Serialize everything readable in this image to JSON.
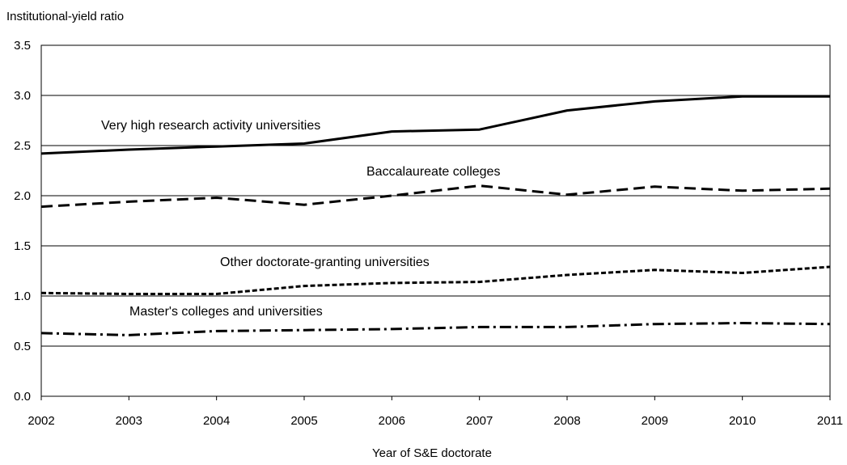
{
  "chart_data": {
    "type": "line",
    "title": "",
    "ylabel": "Institutional-yield ratio",
    "xlabel": "Year of S&E doctorate",
    "x": [
      "2002",
      "2003",
      "2004",
      "2005",
      "2006",
      "2007",
      "2008",
      "2009",
      "2010",
      "2011"
    ],
    "ylim": [
      0,
      3.5
    ],
    "yticks": [
      "0.0",
      "0.5",
      "1.0",
      "1.5",
      "2.0",
      "2.5",
      "3.0",
      "3.5"
    ],
    "grid": "horizontal",
    "legend": "inline labels",
    "series": [
      {
        "name": "Very high research activity universities",
        "style": "solid",
        "color": "#000000",
        "values": [
          2.42,
          2.46,
          2.49,
          2.52,
          2.64,
          2.66,
          2.85,
          2.94,
          2.99,
          2.99
        ]
      },
      {
        "name": "Baccalaureate colleges",
        "style": "dashed",
        "color": "#000000",
        "values": [
          1.89,
          1.94,
          1.98,
          1.91,
          2.0,
          2.1,
          2.01,
          2.09,
          2.05,
          2.07
        ]
      },
      {
        "name": "Other doctorate-granting universities",
        "style": "dotted",
        "color": "#000000",
        "values": [
          1.03,
          1.02,
          1.02,
          1.1,
          1.13,
          1.14,
          1.21,
          1.26,
          1.23,
          1.29
        ]
      },
      {
        "name": "Master's colleges and universities",
        "style": "dashdot",
        "color": "#000000",
        "values": [
          0.63,
          0.61,
          0.65,
          0.66,
          0.67,
          0.69,
          0.69,
          0.72,
          0.73,
          0.72
        ]
      }
    ]
  }
}
